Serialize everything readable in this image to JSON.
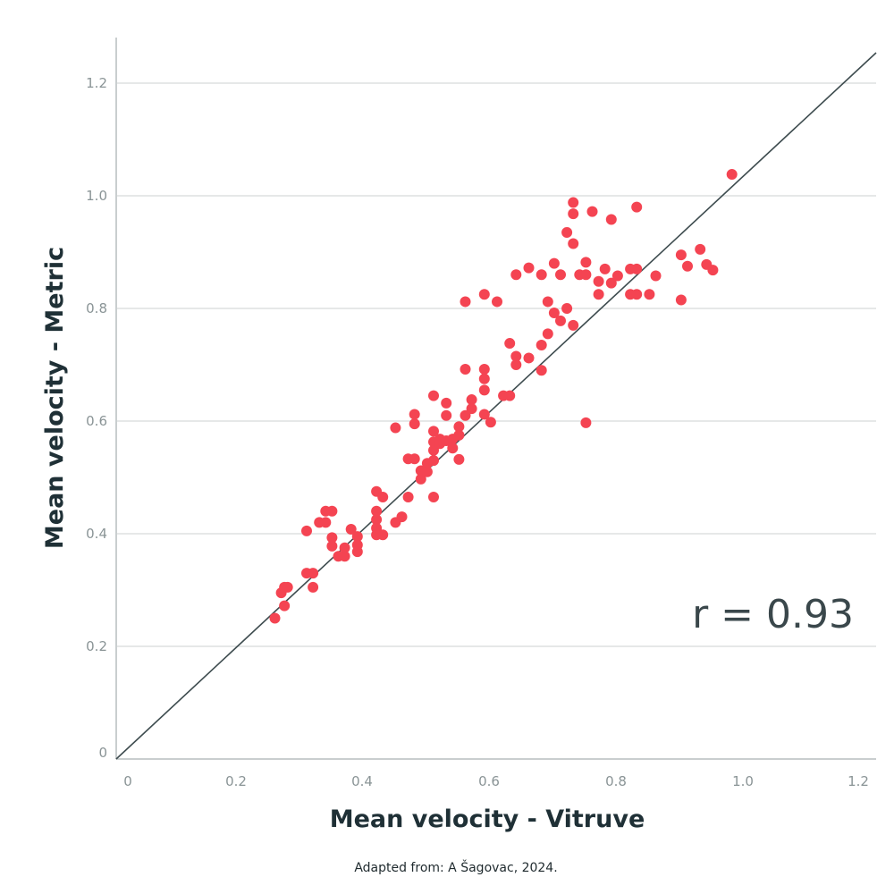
{
  "chart_data": {
    "type": "scatter",
    "xlabel": "Mean velocity - Vitruve",
    "ylabel": "Mean velocity - Metric",
    "xlim": [
      0,
      1.2
    ],
    "ylim": [
      0,
      1.2
    ],
    "x_ticks": [
      "0",
      "0.2",
      "0.4",
      "0.6",
      "0.8",
      "1.0",
      "1.2"
    ],
    "y_ticks": [
      "0",
      "0.2",
      "0.4",
      "0.6",
      "0.8",
      "1.0",
      "1.2"
    ],
    "grid": "horizontal",
    "reference_line": "identity",
    "annotation": "r = 0.93",
    "source": "Adapted from: A Šagovac, 2024.",
    "point_color": "#f44452",
    "line_color": "#3e4c4f",
    "points": [
      [
        0.25,
        0.25
      ],
      [
        0.26,
        0.295
      ],
      [
        0.265,
        0.305
      ],
      [
        0.27,
        0.305
      ],
      [
        0.265,
        0.272
      ],
      [
        0.3,
        0.33
      ],
      [
        0.31,
        0.33
      ],
      [
        0.31,
        0.305
      ],
      [
        0.3,
        0.405
      ],
      [
        0.32,
        0.42
      ],
      [
        0.33,
        0.42
      ],
      [
        0.33,
        0.44
      ],
      [
        0.34,
        0.44
      ],
      [
        0.34,
        0.393
      ],
      [
        0.34,
        0.378
      ],
      [
        0.35,
        0.36
      ],
      [
        0.36,
        0.36
      ],
      [
        0.36,
        0.375
      ],
      [
        0.37,
        0.408
      ],
      [
        0.38,
        0.395
      ],
      [
        0.38,
        0.38
      ],
      [
        0.38,
        0.368
      ],
      [
        0.41,
        0.475
      ],
      [
        0.41,
        0.44
      ],
      [
        0.41,
        0.425
      ],
      [
        0.41,
        0.41
      ],
      [
        0.41,
        0.398
      ],
      [
        0.42,
        0.465
      ],
      [
        0.42,
        0.398
      ],
      [
        0.44,
        0.588
      ],
      [
        0.44,
        0.42
      ],
      [
        0.45,
        0.43
      ],
      [
        0.46,
        0.465
      ],
      [
        0.46,
        0.533
      ],
      [
        0.47,
        0.533
      ],
      [
        0.47,
        0.612
      ],
      [
        0.47,
        0.595
      ],
      [
        0.48,
        0.512
      ],
      [
        0.48,
        0.497
      ],
      [
        0.49,
        0.525
      ],
      [
        0.49,
        0.51
      ],
      [
        0.5,
        0.645
      ],
      [
        0.5,
        0.582
      ],
      [
        0.5,
        0.563
      ],
      [
        0.5,
        0.548
      ],
      [
        0.5,
        0.53
      ],
      [
        0.5,
        0.465
      ],
      [
        0.51,
        0.56
      ],
      [
        0.51,
        0.568
      ],
      [
        0.52,
        0.632
      ],
      [
        0.52,
        0.61
      ],
      [
        0.52,
        0.565
      ],
      [
        0.53,
        0.568
      ],
      [
        0.53,
        0.552
      ],
      [
        0.54,
        0.59
      ],
      [
        0.54,
        0.575
      ],
      [
        0.54,
        0.532
      ],
      [
        0.55,
        0.812
      ],
      [
        0.55,
        0.692
      ],
      [
        0.55,
        0.61
      ],
      [
        0.56,
        0.638
      ],
      [
        0.56,
        0.622
      ],
      [
        0.58,
        0.825
      ],
      [
        0.58,
        0.692
      ],
      [
        0.58,
        0.675
      ],
      [
        0.58,
        0.655
      ],
      [
        0.58,
        0.612
      ],
      [
        0.59,
        0.598
      ],
      [
        0.6,
        0.812
      ],
      [
        0.61,
        0.645
      ],
      [
        0.62,
        0.645
      ],
      [
        0.62,
        0.738
      ],
      [
        0.63,
        0.715
      ],
      [
        0.63,
        0.7
      ],
      [
        0.63,
        0.86
      ],
      [
        0.65,
        0.872
      ],
      [
        0.65,
        0.712
      ],
      [
        0.67,
        0.86
      ],
      [
        0.67,
        0.735
      ],
      [
        0.67,
        0.69
      ],
      [
        0.68,
        0.755
      ],
      [
        0.68,
        0.812
      ],
      [
        0.69,
        0.792
      ],
      [
        0.69,
        0.88
      ],
      [
        0.7,
        0.86
      ],
      [
        0.7,
        0.778
      ],
      [
        0.71,
        0.8
      ],
      [
        0.71,
        0.935
      ],
      [
        0.72,
        0.915
      ],
      [
        0.72,
        0.968
      ],
      [
        0.72,
        0.988
      ],
      [
        0.72,
        0.77
      ],
      [
        0.73,
        0.86
      ],
      [
        0.74,
        0.86
      ],
      [
        0.74,
        0.882
      ],
      [
        0.74,
        0.597
      ],
      [
        0.75,
        0.972
      ],
      [
        0.76,
        0.848
      ],
      [
        0.76,
        0.825
      ],
      [
        0.77,
        0.87
      ],
      [
        0.78,
        0.958
      ],
      [
        0.78,
        0.845
      ],
      [
        0.79,
        0.858
      ],
      [
        0.81,
        0.87
      ],
      [
        0.81,
        0.825
      ],
      [
        0.82,
        0.87
      ],
      [
        0.82,
        0.825
      ],
      [
        0.82,
        0.98
      ],
      [
        0.84,
        0.825
      ],
      [
        0.85,
        0.858
      ],
      [
        0.89,
        0.815
      ],
      [
        0.89,
        0.895
      ],
      [
        0.9,
        0.875
      ],
      [
        0.92,
        0.905
      ],
      [
        0.93,
        0.878
      ],
      [
        0.94,
        0.868
      ],
      [
        0.97,
        1.038
      ]
    ]
  }
}
